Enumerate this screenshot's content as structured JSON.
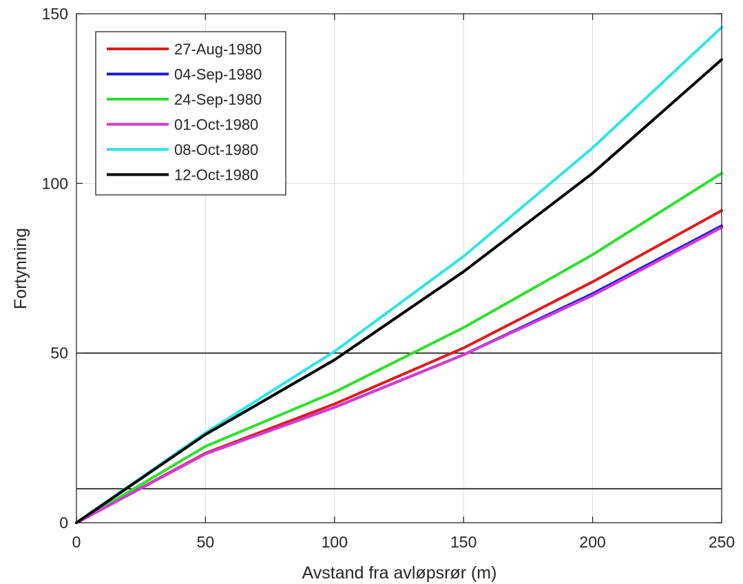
{
  "chart_data": {
    "type": "line",
    "title": "",
    "xlabel": "Avstand fra avløpsrør (m)",
    "ylabel": "Fortynning",
    "xlim": [
      0,
      250
    ],
    "ylim": [
      0,
      150
    ],
    "xticks": [
      0,
      50,
      100,
      150,
      200,
      250
    ],
    "yticks": [
      0,
      50,
      100,
      150
    ],
    "grid": true,
    "legend_position": "top-left",
    "reference_lines": [
      10,
      50
    ],
    "x": [
      0,
      50,
      100,
      150,
      200,
      250
    ],
    "series": [
      {
        "name": "27-Aug-1980",
        "color": "#e01b1b",
        "values": [
          0,
          20.5,
          35,
          51.5,
          71,
          92
        ]
      },
      {
        "name": "04-Sep-1980",
        "color": "#1a1ad6",
        "values": [
          0,
          20.3,
          34,
          49.5,
          67.5,
          87.5
        ]
      },
      {
        "name": "24-Sep-1980",
        "color": "#2ee02e",
        "values": [
          0,
          22.5,
          38.5,
          57.5,
          79,
          103
        ]
      },
      {
        "name": "01-Oct-1980",
        "color": "#d63ad6",
        "values": [
          0,
          20.3,
          34,
          49.5,
          67,
          87
        ]
      },
      {
        "name": "08-Oct-1980",
        "color": "#2ee6e6",
        "values": [
          0,
          26.5,
          50.5,
          78.5,
          110.5,
          146
        ]
      },
      {
        "name": "12-Oct-1980",
        "color": "#000000",
        "values": [
          0,
          26,
          48,
          74,
          103,
          136.5
        ]
      }
    ]
  }
}
